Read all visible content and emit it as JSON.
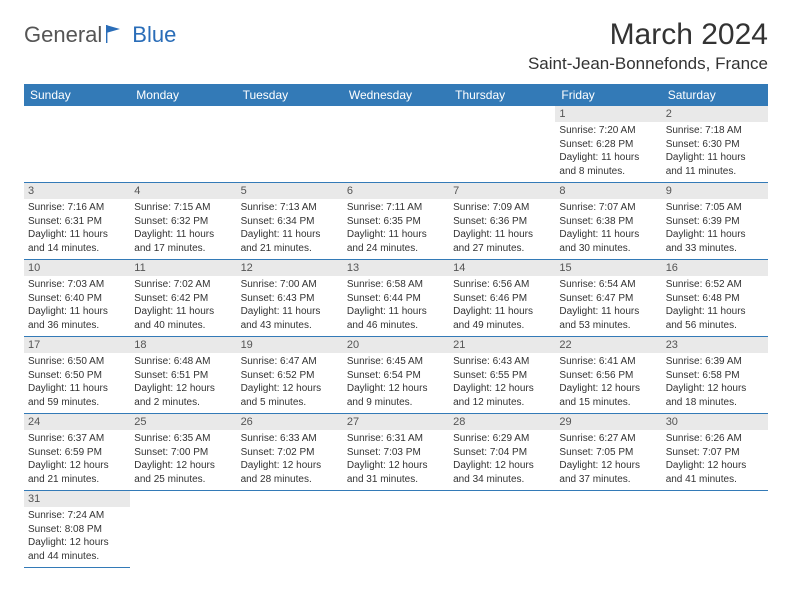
{
  "logo": {
    "part1": "General",
    "part2": "Blue"
  },
  "header": {
    "title": "March 2024",
    "location": "Saint-Jean-Bonnefonds, France"
  },
  "weekday_labels": [
    "Sunday",
    "Monday",
    "Tuesday",
    "Wednesday",
    "Thursday",
    "Friday",
    "Saturday"
  ],
  "colors": {
    "header_bg": "#337ab7",
    "header_text": "#ffffff",
    "daynum_bg": "#e9e9e9",
    "border": "#337ab7",
    "logo_gray": "#555555",
    "logo_blue": "#2a6db8"
  },
  "days": {
    "1": {
      "sunrise": "7:20 AM",
      "sunset": "6:28 PM",
      "daylight": "11 hours and 8 minutes."
    },
    "2": {
      "sunrise": "7:18 AM",
      "sunset": "6:30 PM",
      "daylight": "11 hours and 11 minutes."
    },
    "3": {
      "sunrise": "7:16 AM",
      "sunset": "6:31 PM",
      "daylight": "11 hours and 14 minutes."
    },
    "4": {
      "sunrise": "7:15 AM",
      "sunset": "6:32 PM",
      "daylight": "11 hours and 17 minutes."
    },
    "5": {
      "sunrise": "7:13 AM",
      "sunset": "6:34 PM",
      "daylight": "11 hours and 21 minutes."
    },
    "6": {
      "sunrise": "7:11 AM",
      "sunset": "6:35 PM",
      "daylight": "11 hours and 24 minutes."
    },
    "7": {
      "sunrise": "7:09 AM",
      "sunset": "6:36 PM",
      "daylight": "11 hours and 27 minutes."
    },
    "8": {
      "sunrise": "7:07 AM",
      "sunset": "6:38 PM",
      "daylight": "11 hours and 30 minutes."
    },
    "9": {
      "sunrise": "7:05 AM",
      "sunset": "6:39 PM",
      "daylight": "11 hours and 33 minutes."
    },
    "10": {
      "sunrise": "7:03 AM",
      "sunset": "6:40 PM",
      "daylight": "11 hours and 36 minutes."
    },
    "11": {
      "sunrise": "7:02 AM",
      "sunset": "6:42 PM",
      "daylight": "11 hours and 40 minutes."
    },
    "12": {
      "sunrise": "7:00 AM",
      "sunset": "6:43 PM",
      "daylight": "11 hours and 43 minutes."
    },
    "13": {
      "sunrise": "6:58 AM",
      "sunset": "6:44 PM",
      "daylight": "11 hours and 46 minutes."
    },
    "14": {
      "sunrise": "6:56 AM",
      "sunset": "6:46 PM",
      "daylight": "11 hours and 49 minutes."
    },
    "15": {
      "sunrise": "6:54 AM",
      "sunset": "6:47 PM",
      "daylight": "11 hours and 53 minutes."
    },
    "16": {
      "sunrise": "6:52 AM",
      "sunset": "6:48 PM",
      "daylight": "11 hours and 56 minutes."
    },
    "17": {
      "sunrise": "6:50 AM",
      "sunset": "6:50 PM",
      "daylight": "11 hours and 59 minutes."
    },
    "18": {
      "sunrise": "6:48 AM",
      "sunset": "6:51 PM",
      "daylight": "12 hours and 2 minutes."
    },
    "19": {
      "sunrise": "6:47 AM",
      "sunset": "6:52 PM",
      "daylight": "12 hours and 5 minutes."
    },
    "20": {
      "sunrise": "6:45 AM",
      "sunset": "6:54 PM",
      "daylight": "12 hours and 9 minutes."
    },
    "21": {
      "sunrise": "6:43 AM",
      "sunset": "6:55 PM",
      "daylight": "12 hours and 12 minutes."
    },
    "22": {
      "sunrise": "6:41 AM",
      "sunset": "6:56 PM",
      "daylight": "12 hours and 15 minutes."
    },
    "23": {
      "sunrise": "6:39 AM",
      "sunset": "6:58 PM",
      "daylight": "12 hours and 18 minutes."
    },
    "24": {
      "sunrise": "6:37 AM",
      "sunset": "6:59 PM",
      "daylight": "12 hours and 21 minutes."
    },
    "25": {
      "sunrise": "6:35 AM",
      "sunset": "7:00 PM",
      "daylight": "12 hours and 25 minutes."
    },
    "26": {
      "sunrise": "6:33 AM",
      "sunset": "7:02 PM",
      "daylight": "12 hours and 28 minutes."
    },
    "27": {
      "sunrise": "6:31 AM",
      "sunset": "7:03 PM",
      "daylight": "12 hours and 31 minutes."
    },
    "28": {
      "sunrise": "6:29 AM",
      "sunset": "7:04 PM",
      "daylight": "12 hours and 34 minutes."
    },
    "29": {
      "sunrise": "6:27 AM",
      "sunset": "7:05 PM",
      "daylight": "12 hours and 37 minutes."
    },
    "30": {
      "sunrise": "6:26 AM",
      "sunset": "7:07 PM",
      "daylight": "12 hours and 41 minutes."
    },
    "31": {
      "sunrise": "7:24 AM",
      "sunset": "8:08 PM",
      "daylight": "12 hours and 44 minutes."
    }
  },
  "grid": {
    "first_weekday_index": 5,
    "num_days": 31
  },
  "labels": {
    "sunrise_prefix": "Sunrise: ",
    "sunset_prefix": "Sunset: ",
    "daylight_prefix": "Daylight: "
  }
}
